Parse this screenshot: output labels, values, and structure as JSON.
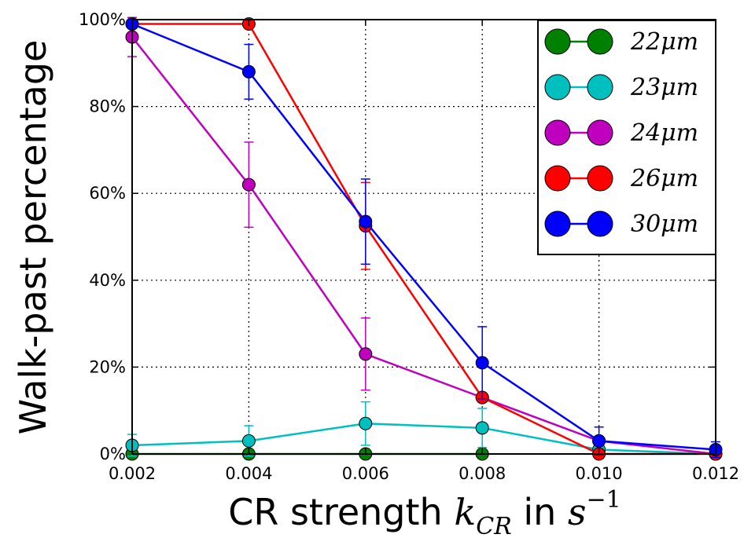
{
  "chart_data": {
    "type": "line",
    "xlabel": "CR strength k_CR in s^-1",
    "xlabel_parts": {
      "lead": "CR strength ",
      "k": "k",
      "sub": "CR",
      "mid": " in ",
      "s": "s",
      "sup": "−1"
    },
    "ylabel": "Walk-past percentage",
    "x": [
      0.002,
      0.004,
      0.006,
      0.008,
      0.01,
      0.012
    ],
    "xticks": [
      "0.002",
      "0.004",
      "0.006",
      "0.008",
      "0.010",
      "0.012"
    ],
    "xlim": [
      0.002,
      0.012
    ],
    "ylim": [
      0,
      100
    ],
    "yticks": [
      0,
      20,
      40,
      60,
      80,
      100
    ],
    "ytick_labels": [
      "0%",
      "20%",
      "40%",
      "60%",
      "80%",
      "100%"
    ],
    "grid": true,
    "legend_position": "top-right",
    "series": [
      {
        "name": "22μm",
        "color": "#008000",
        "values": [
          0,
          0,
          0,
          0,
          null,
          null
        ],
        "errors": [
          0,
          0,
          0,
          0,
          null,
          null
        ]
      },
      {
        "name": "23μm",
        "color": "#00bfbf",
        "values": [
          2,
          3,
          7,
          6,
          1,
          0
        ],
        "errors": [
          2.5,
          3.5,
          5,
          4.5,
          0,
          0
        ]
      },
      {
        "name": "24μm",
        "color": "#bf00bf",
        "values": [
          96,
          62,
          23,
          13,
          3,
          0
        ],
        "errors": [
          4.5,
          9.8,
          8.3,
          0,
          0,
          0
        ]
      },
      {
        "name": "26μm",
        "color": "#ff0000",
        "values": [
          99,
          99,
          52.5,
          13,
          0,
          0
        ],
        "errors": [
          0,
          0,
          10,
          0,
          0,
          0
        ]
      },
      {
        "name": "30μm",
        "color": "#0000ff",
        "values": [
          99,
          88,
          53.5,
          21,
          3,
          1
        ],
        "errors": [
          0,
          6.3,
          9.8,
          8.3,
          3.2,
          1.8
        ]
      }
    ]
  }
}
